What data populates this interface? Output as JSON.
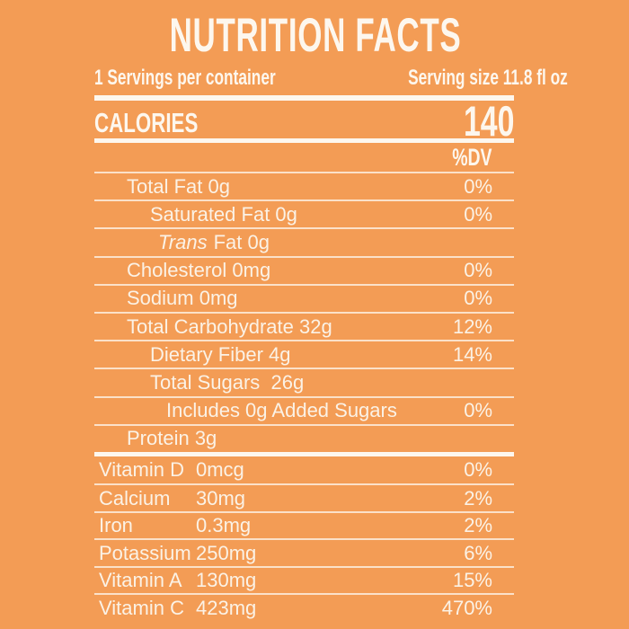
{
  "colors": {
    "background": "#F39C55",
    "text": "#FDF7EE"
  },
  "header": {
    "title": "NUTRITION FACTS",
    "servings_per_container": "1 Servings per container",
    "serving_size": "Serving size 11.8 fl oz"
  },
  "calories": {
    "label": "CALORIES",
    "value": "140"
  },
  "dv_header": "%DV",
  "nutrients": [
    {
      "label": "Total Fat 0g",
      "dv": "0%"
    },
    {
      "label": "Saturated Fat 0g",
      "dv": "0%"
    },
    {
      "label_italic": "Trans",
      "label_rest": "Fat 0g",
      "dv": ""
    },
    {
      "label": "Cholesterol 0mg",
      "dv": "0%"
    },
    {
      "label": "Sodium 0mg",
      "dv": "0%"
    },
    {
      "label": "Total Carbohydrate 32g",
      "dv": "12%"
    },
    {
      "label": "Dietary Fiber 4g",
      "dv": "14%"
    },
    {
      "label": "Total Sugars  26g",
      "dv": ""
    },
    {
      "label": "Includes 0g Added Sugars",
      "dv": "0%"
    },
    {
      "label": "Protein 3g",
      "dv": ""
    }
  ],
  "micronutrients": [
    {
      "name": "Vitamin D",
      "amount": "0mcg",
      "dv": "0%"
    },
    {
      "name": "Calcium",
      "amount": "30mg",
      "dv": "2%"
    },
    {
      "name": "Iron",
      "amount": "0.3mg",
      "dv": "2%"
    },
    {
      "name": "Potassium",
      "amount": "250mg",
      "dv": "6%"
    },
    {
      "name": "Vitamin A",
      "amount": "130mg",
      "dv": "15%"
    },
    {
      "name": "Vitamin C",
      "amount": "423mg",
      "dv": "470%"
    }
  ]
}
